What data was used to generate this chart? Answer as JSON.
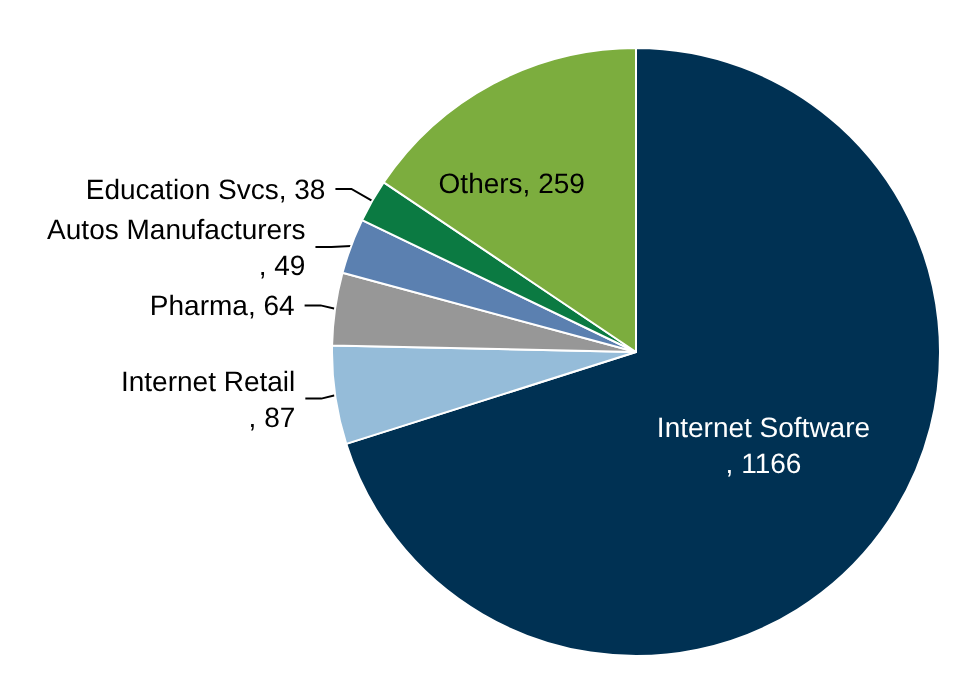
{
  "chart_data": {
    "type": "pie",
    "categories": [
      "Internet Software",
      "Internet Retail",
      "Pharma",
      "Autos Manufacturers",
      "Education Svcs",
      "Others"
    ],
    "values": [
      1166,
      87,
      64,
      49,
      38,
      259
    ],
    "colors": [
      "#003153",
      "#95bcd9",
      "#979797",
      "#5b80b0",
      "#0b7a42",
      "#7cad3e"
    ],
    "value_labels": [
      ", 1166",
      ", 87",
      ", 64",
      ", 49",
      ", 38",
      ", 259"
    ],
    "legend": false
  }
}
